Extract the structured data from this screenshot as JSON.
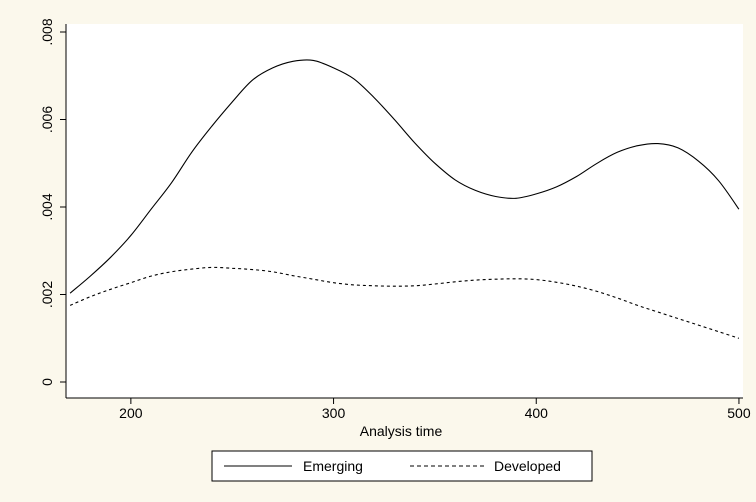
{
  "chart_data": {
    "type": "line",
    "title": "",
    "xlabel": "Analysis time",
    "ylabel": "",
    "xlim": [
      168,
      502
    ],
    "ylim": [
      0,
      0.008
    ],
    "xticks": [
      200,
      300,
      400,
      500
    ],
    "xtick_labels": [
      "200",
      "300",
      "400",
      "500"
    ],
    "yticks": [
      0,
      0.002,
      0.004,
      0.006,
      0.008
    ],
    "ytick_labels": [
      "0",
      ".002",
      ".004",
      ".006",
      ".008"
    ],
    "grid": false,
    "legend_position": "bottom",
    "series": [
      {
        "name": "Emerging",
        "style": "solid",
        "color": "#000000",
        "x": [
          170,
          180,
          190,
          200,
          210,
          220,
          230,
          240,
          250,
          260,
          270,
          280,
          290,
          300,
          310,
          320,
          330,
          340,
          350,
          360,
          370,
          380,
          390,
          400,
          410,
          420,
          430,
          440,
          450,
          460,
          470,
          480,
          490,
          500
        ],
        "y": [
          0.00203,
          0.00242,
          0.00285,
          0.00335,
          0.00395,
          0.00455,
          0.00525,
          0.00585,
          0.0064,
          0.0069,
          0.00718,
          0.00733,
          0.00735,
          0.00718,
          0.00693,
          0.0065,
          0.006,
          0.00547,
          0.005,
          0.00462,
          0.00438,
          0.00424,
          0.0042,
          0.0043,
          0.00446,
          0.0047,
          0.005,
          0.00525,
          0.0054,
          0.00545,
          0.00535,
          0.00505,
          0.0046,
          0.00395
        ]
      },
      {
        "name": "Developed",
        "style": "dashed",
        "color": "#000000",
        "x": [
          170,
          180,
          190,
          200,
          210,
          220,
          230,
          240,
          250,
          260,
          270,
          280,
          290,
          300,
          310,
          320,
          330,
          340,
          350,
          360,
          370,
          380,
          390,
          400,
          410,
          420,
          430,
          440,
          450,
          460,
          470,
          480,
          490,
          500
        ],
        "y": [
          0.00175,
          0.00195,
          0.00212,
          0.00227,
          0.00242,
          0.00252,
          0.00258,
          0.00262,
          0.0026,
          0.00257,
          0.00252,
          0.00243,
          0.00235,
          0.00227,
          0.00222,
          0.0022,
          0.00219,
          0.0022,
          0.00224,
          0.00229,
          0.00233,
          0.00235,
          0.00236,
          0.00234,
          0.00228,
          0.00219,
          0.00207,
          0.00192,
          0.00175,
          0.0016,
          0.00145,
          0.0013,
          0.00115,
          0.001
        ]
      }
    ]
  }
}
